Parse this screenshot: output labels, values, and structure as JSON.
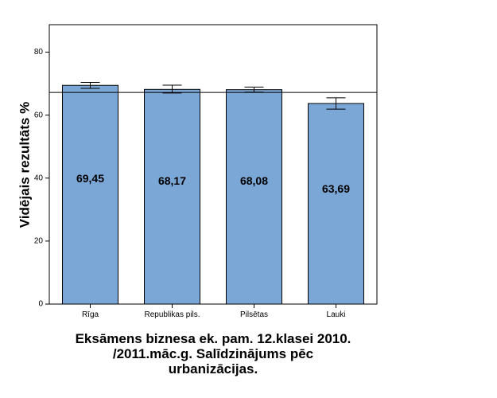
{
  "chart_data": {
    "type": "bar",
    "title": "Eksāmens biznesa ek. pam. 12.klasei 2010.\n/2011.māc.g. Salīdzinājums pēc\nurbanizācijas.",
    "xlabel": "",
    "ylabel": "Vidējais rezultāts %",
    "categories": [
      "Rīga",
      "Republikas pils.",
      "Pilsētas",
      "Lauki"
    ],
    "values": [
      69.45,
      68.17,
      68.08,
      63.69
    ],
    "value_labels": [
      "69,45",
      "68,17",
      "68,08",
      "63,69"
    ],
    "error_low": [
      68.5,
      67.0,
      67.3,
      61.9
    ],
    "error_high": [
      70.4,
      69.5,
      68.9,
      65.5
    ],
    "reference_line": 67.2,
    "ylim": [
      0,
      80
    ],
    "y_ticks": [
      "0",
      "20",
      "40",
      "60",
      "80"
    ],
    "grid": false,
    "bar_color": "#7BA7D6",
    "bar_edge_color": "#000000"
  }
}
